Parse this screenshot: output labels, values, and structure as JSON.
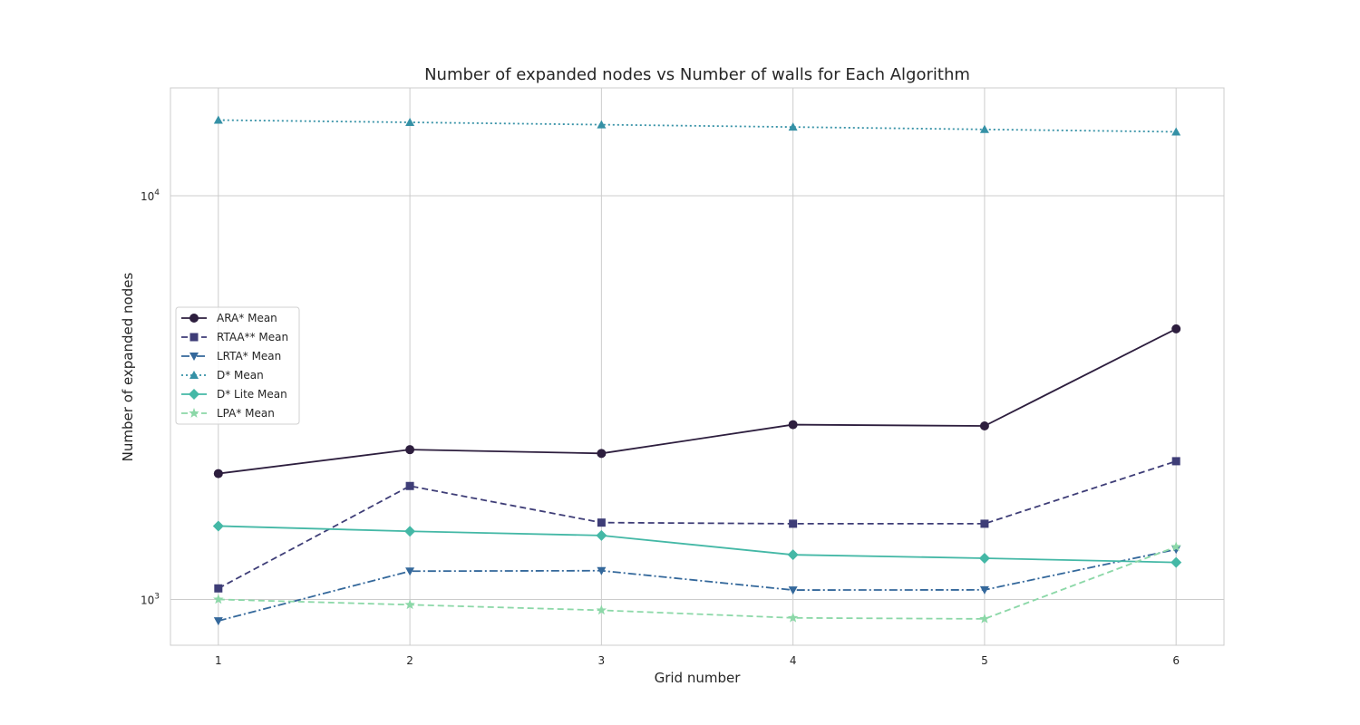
{
  "chart_data": {
    "type": "line",
    "title": "Number of expanded nodes vs Number of walls for Each Algorithm",
    "xlabel": "Grid number",
    "ylabel": "Number of expanded nodes",
    "x": [
      1,
      2,
      3,
      4,
      5,
      6
    ],
    "x_ticks": [
      "1",
      "2",
      "3",
      "4",
      "5",
      "6"
    ],
    "y_scale": "log",
    "ylim": [
      770,
      18500
    ],
    "y_ticks": [
      {
        "value": 1000,
        "base": "10",
        "exp": "3"
      },
      {
        "value": 10000,
        "base": "10",
        "exp": "4"
      }
    ],
    "grid": true,
    "legend_position": "center-left",
    "series": [
      {
        "name": "ARA* Mean",
        "values": [
          2050,
          2350,
          2300,
          2710,
          2690,
          4680
        ],
        "color": "#2d1e3e",
        "dash": "solid",
        "marker": "circle"
      },
      {
        "name": "RTAA** Mean",
        "values": [
          1065,
          1910,
          1550,
          1540,
          1540,
          2200
        ],
        "color": "#3e3d77",
        "dash": "dashed",
        "marker": "square"
      },
      {
        "name": "LRTA* Mean",
        "values": [
          885,
          1175,
          1178,
          1055,
          1056,
          1330
        ],
        "color": "#34689b",
        "dash": "dashdot",
        "marker": "triangle-down"
      },
      {
        "name": "D* Mean",
        "values": [
          15400,
          15200,
          15000,
          14800,
          14600,
          14400
        ],
        "color": "#3591a6",
        "dash": "dotted",
        "marker": "triangle-up"
      },
      {
        "name": "D* Lite Mean",
        "values": [
          1520,
          1475,
          1440,
          1290,
          1265,
          1235
        ],
        "color": "#44b8a6",
        "dash": "solid",
        "marker": "diamond"
      },
      {
        "name": "LPA* Mean",
        "values": [
          1000,
          970,
          940,
          900,
          895,
          1350
        ],
        "color": "#8cd8a8",
        "dash": "dashed",
        "marker": "star"
      }
    ]
  }
}
